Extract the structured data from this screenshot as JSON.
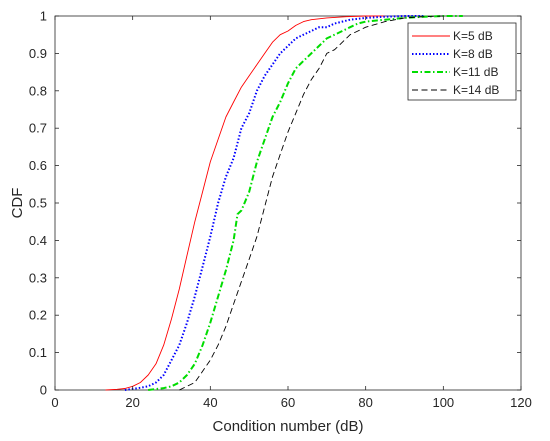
{
  "chart_data": {
    "type": "line",
    "title": "",
    "xlabel": "Condition number (dB)",
    "ylabel": "CDF",
    "xlim": [
      0,
      120
    ],
    "ylim": [
      0,
      1
    ],
    "xticks": [
      "0",
      "20",
      "40",
      "60",
      "80",
      "100",
      "120"
    ],
    "yticks": [
      "0",
      "0.1",
      "0.2",
      "0.3",
      "0.4",
      "0.5",
      "0.6",
      "0.7",
      "0.8",
      "0.9",
      "1"
    ],
    "grid": false,
    "legend_position": "top-right",
    "series": [
      {
        "name": "K=5 dB",
        "color": "#ff0000",
        "style": "solid",
        "x": [
          13,
          16,
          18,
          20,
          22,
          24,
          26,
          28,
          30,
          32,
          34,
          36,
          38,
          40,
          42,
          44,
          46,
          48,
          50,
          52,
          54,
          56,
          58,
          60,
          62,
          64,
          66,
          70,
          75,
          80,
          85
        ],
        "y": [
          0,
          0.002,
          0.004,
          0.01,
          0.02,
          0.04,
          0.07,
          0.12,
          0.19,
          0.27,
          0.36,
          0.45,
          0.53,
          0.61,
          0.67,
          0.73,
          0.77,
          0.81,
          0.84,
          0.87,
          0.9,
          0.93,
          0.95,
          0.96,
          0.975,
          0.985,
          0.99,
          0.995,
          0.998,
          1,
          1
        ]
      },
      {
        "name": "K=8 dB",
        "color": "#0000ff",
        "style": "dotted",
        "x": [
          18,
          20,
          22,
          24,
          26,
          28,
          30,
          32,
          34,
          36,
          38,
          40,
          42,
          44,
          46,
          48,
          50,
          52,
          54,
          56,
          58,
          60,
          62,
          64,
          66,
          68,
          70,
          72,
          74,
          76,
          80,
          85,
          90,
          95
        ],
        "y": [
          0,
          0.003,
          0.006,
          0.01,
          0.02,
          0.04,
          0.08,
          0.12,
          0.18,
          0.25,
          0.33,
          0.41,
          0.5,
          0.57,
          0.62,
          0.7,
          0.74,
          0.8,
          0.84,
          0.87,
          0.9,
          0.92,
          0.94,
          0.95,
          0.96,
          0.97,
          0.97,
          0.98,
          0.985,
          0.99,
          0.995,
          0.998,
          1,
          1
        ]
      },
      {
        "name": "K=11 dB",
        "color": "#00dd00",
        "style": "dashdot",
        "x": [
          24,
          28,
          30,
          32,
          34,
          36,
          38,
          40,
          42,
          44,
          46,
          47,
          48,
          50,
          52,
          54,
          56,
          58,
          60,
          62,
          64,
          66,
          68,
          70,
          72,
          74,
          76,
          78,
          80,
          85,
          90,
          95,
          100,
          105
        ],
        "y": [
          0,
          0.005,
          0.01,
          0.02,
          0.04,
          0.07,
          0.12,
          0.18,
          0.25,
          0.32,
          0.4,
          0.47,
          0.48,
          0.53,
          0.61,
          0.67,
          0.73,
          0.77,
          0.82,
          0.86,
          0.88,
          0.9,
          0.92,
          0.94,
          0.95,
          0.96,
          0.97,
          0.98,
          0.985,
          0.99,
          0.995,
          0.998,
          1,
          1
        ]
      },
      {
        "name": "K=14 dB",
        "color": "#000000",
        "style": "dashed",
        "x": [
          32,
          34,
          36,
          38,
          40,
          42,
          44,
          46,
          48,
          50,
          52,
          54,
          56,
          58,
          60,
          62,
          64,
          66,
          68,
          70,
          72,
          74,
          76,
          78,
          80,
          85,
          90,
          95,
          100
        ],
        "y": [
          0,
          0.01,
          0.02,
          0.05,
          0.08,
          0.12,
          0.17,
          0.23,
          0.29,
          0.35,
          0.41,
          0.49,
          0.57,
          0.63,
          0.69,
          0.74,
          0.79,
          0.83,
          0.86,
          0.9,
          0.91,
          0.93,
          0.95,
          0.96,
          0.97,
          0.985,
          0.995,
          0.998,
          1
        ]
      }
    ]
  }
}
